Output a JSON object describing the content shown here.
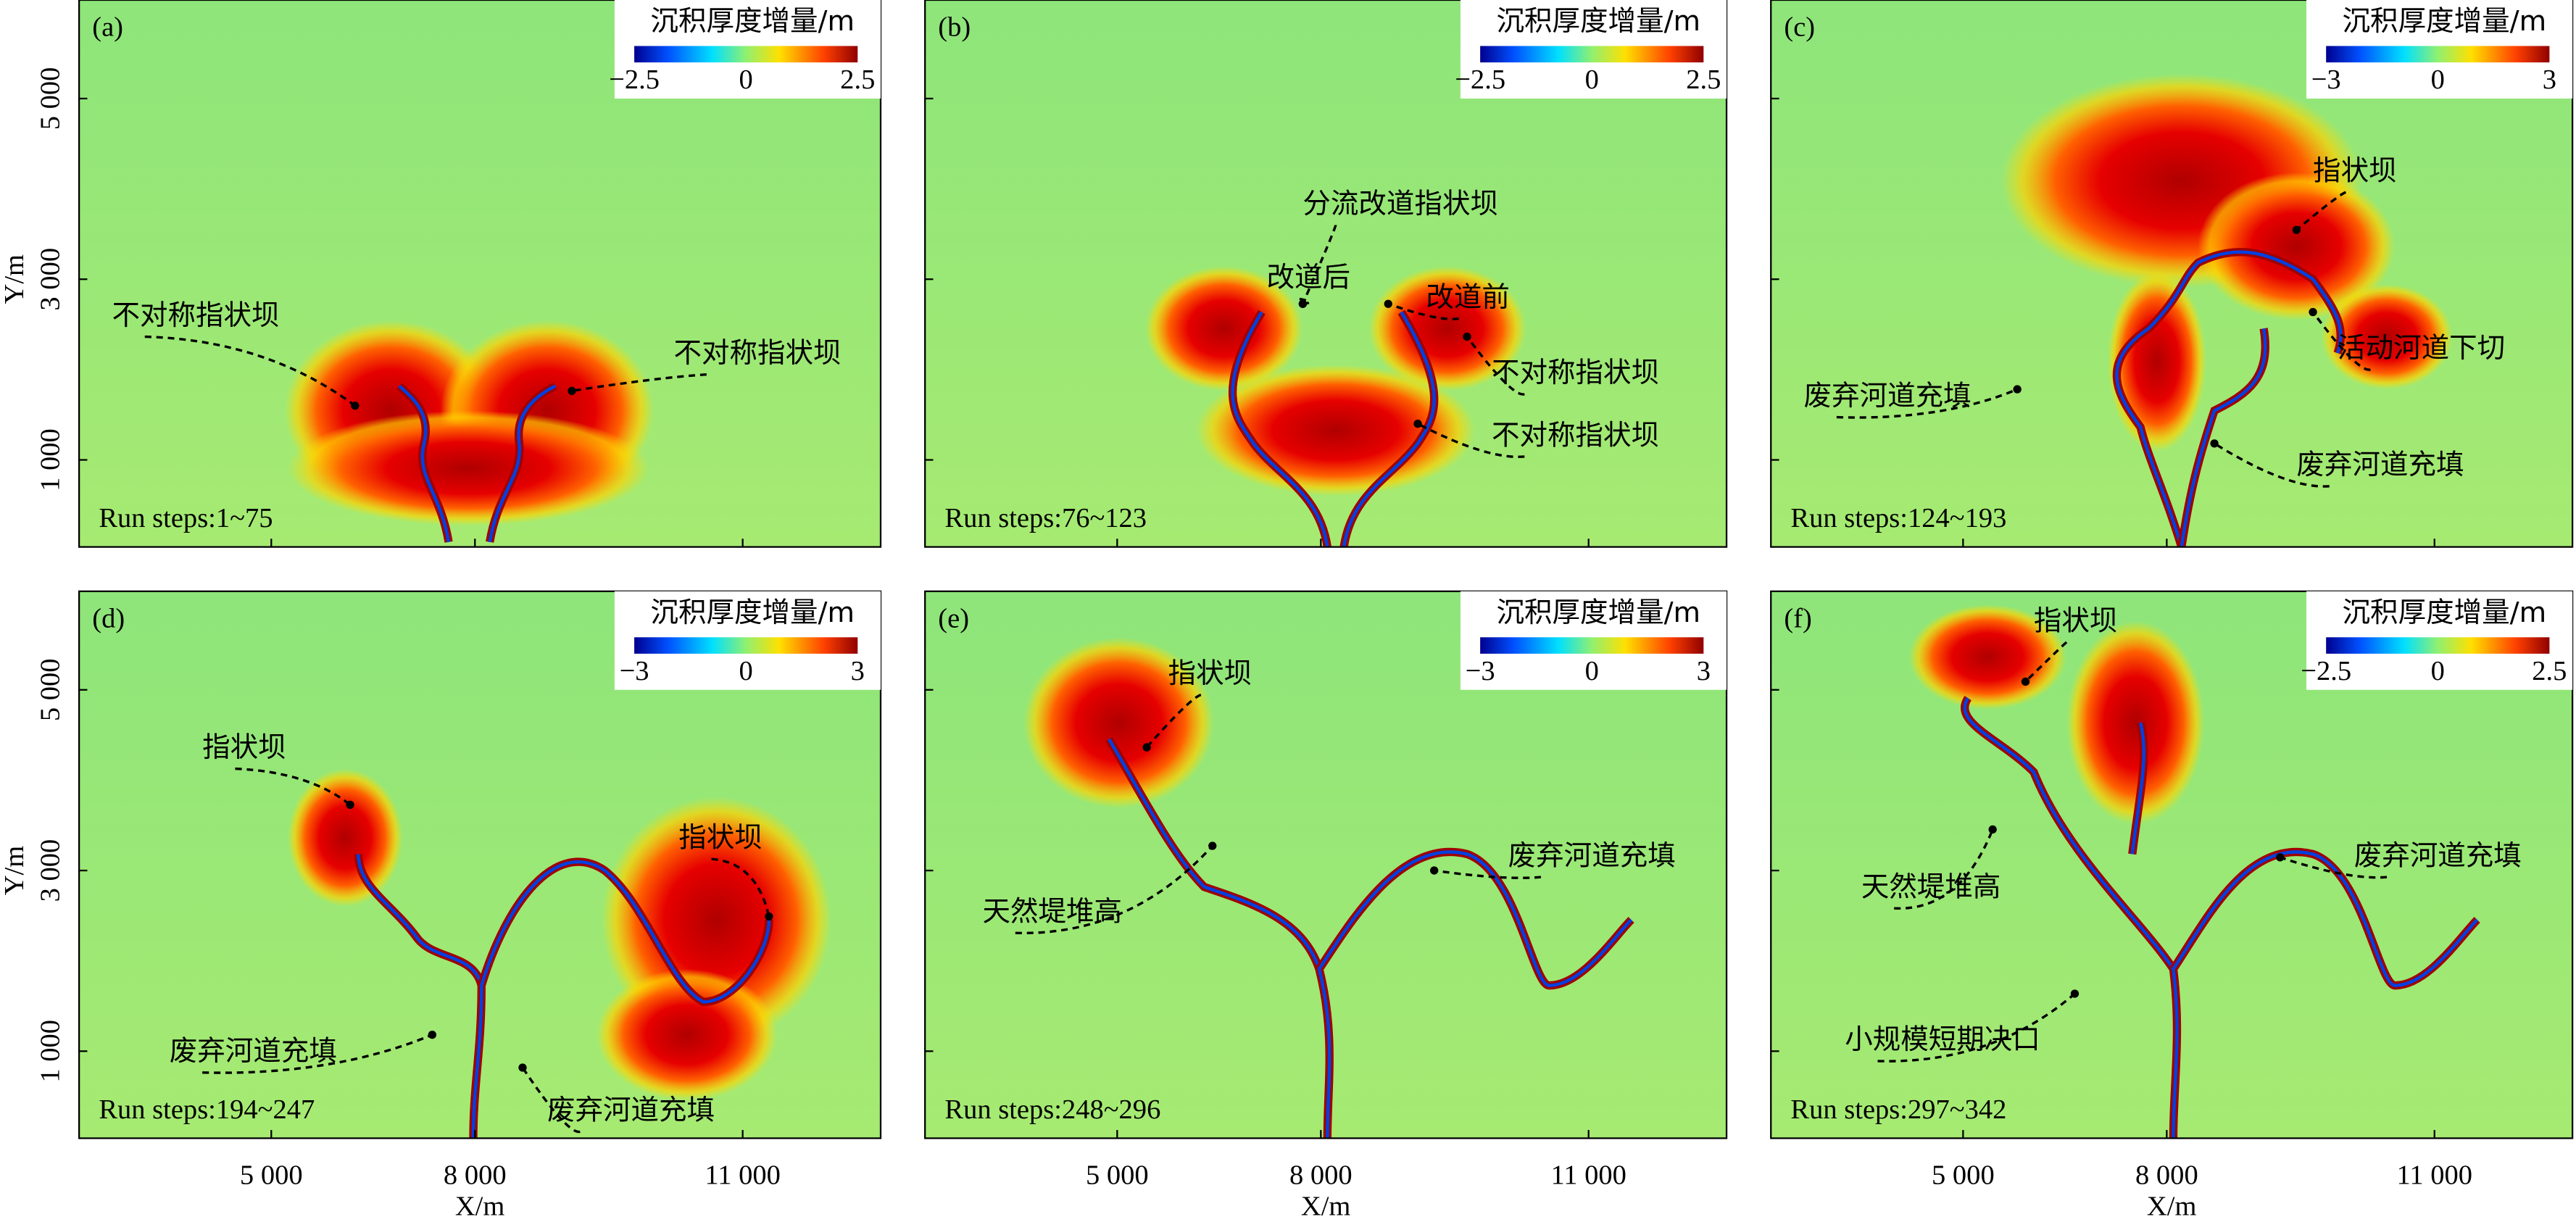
{
  "axes": {
    "y_label": "Y/m",
    "x_label": "X/m",
    "y_ticks": [
      "5 000",
      "3 000",
      "1 000"
    ],
    "x_ticks": [
      "5 000",
      "8 000",
      "11 000"
    ]
  },
  "panels": [
    {
      "label": "(a)",
      "run_steps": "Run steps:1~75",
      "colorbar": {
        "title": "沉积厚度增量/m",
        "ticks": [
          "−2.5",
          "0",
          "2.5"
        ]
      },
      "annotations": [
        "不对称指状坝",
        "不对称指状坝"
      ]
    },
    {
      "label": "(b)",
      "run_steps": "Run steps:76~123",
      "colorbar": {
        "title": "沉积厚度增量/m",
        "ticks": [
          "−2.5",
          "0",
          "2.5"
        ]
      },
      "annotations": [
        "分流改道指状坝",
        "改道后",
        "改道前",
        "不对称指状坝",
        "不对称指状坝"
      ]
    },
    {
      "label": "(c)",
      "run_steps": "Run steps:124~193",
      "colorbar": {
        "title": "沉积厚度增量/m",
        "ticks": [
          "−3",
          "0",
          "3"
        ]
      },
      "annotations": [
        "指状坝",
        "活动河道下切",
        "废弃河道充填",
        "废弃河道充填"
      ]
    },
    {
      "label": "(d)",
      "run_steps": "Run steps:194~247",
      "colorbar": {
        "title": "沉积厚度增量/m",
        "ticks": [
          "−3",
          "0",
          "3"
        ]
      },
      "annotations": [
        "指状坝",
        "指状坝",
        "废弃河道充填",
        "废弃河道充填"
      ]
    },
    {
      "label": "(e)",
      "run_steps": "Run steps:248~296",
      "colorbar": {
        "title": "沉积厚度增量/m",
        "ticks": [
          "−3",
          "0",
          "3"
        ]
      },
      "annotations": [
        "指状坝",
        "天然堤堆高",
        "废弃河道充填"
      ]
    },
    {
      "label": "(f)",
      "run_steps": "Run steps:297~342",
      "colorbar": {
        "title": "沉积厚度增量/m",
        "ticks": [
          "−2.5",
          "0",
          "2.5"
        ]
      },
      "annotations": [
        "指状坝",
        "天然堤堆高",
        "废弃河道充填",
        "小规模短期决口"
      ]
    }
  ]
}
